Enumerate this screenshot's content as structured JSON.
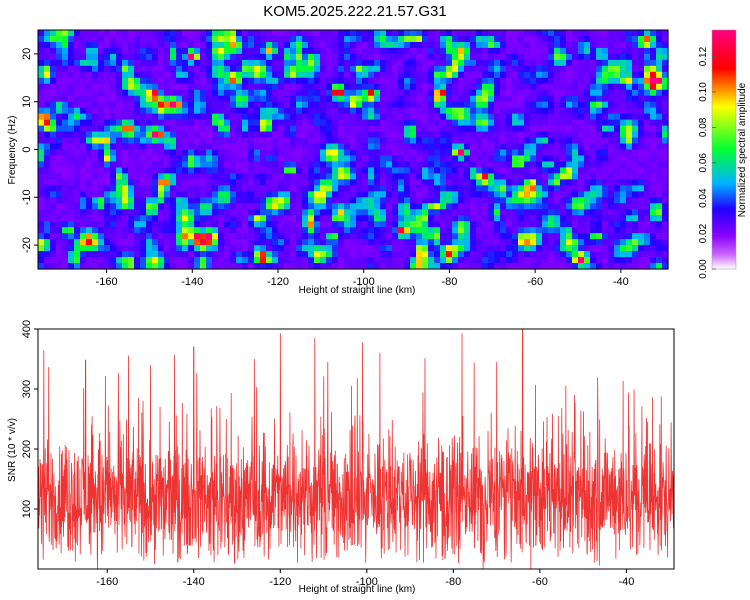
{
  "title": "KOM5.2025.222.21.57.G31",
  "chart_data": [
    {
      "type": "heatmap",
      "xlabel": "Height of straight line (km)",
      "ylabel": "Frequency (Hz)",
      "xlim": [
        -176,
        -29
      ],
      "ylim": [
        -25,
        25
      ],
      "xticks": [
        -160,
        -140,
        -120,
        -100,
        -80,
        -60,
        -40
      ],
      "yticks": [
        -20,
        -10,
        0,
        10,
        20
      ],
      "colorbar": {
        "label": "Normalized spectral amplitude",
        "range": [
          0,
          0.135
        ],
        "ticks": [
          0.0,
          0.02,
          0.04,
          0.06,
          0.08,
          0.1,
          0.12
        ],
        "colormap": [
          "#ffffff",
          "#cc66ff",
          "#8800ff",
          "#2200ff",
          "#00b4ff",
          "#00ff33",
          "#ffff00",
          "#ff0000",
          "#ff0080"
        ]
      },
      "peaks": [
        {
          "x": -140,
          "y": 19.5,
          "value": 0.13
        },
        {
          "x": -72,
          "y": -6,
          "value": 0.11
        },
        {
          "x": -149,
          "y": 11.5,
          "value": 0.11
        },
        {
          "x": -144,
          "y": 9.5,
          "value": 0.1
        },
        {
          "x": -123,
          "y": 5,
          "value": 0.1
        },
        {
          "x": -82,
          "y": 12,
          "value": 0.1
        },
        {
          "x": -148,
          "y": 3,
          "value": 0.09
        },
        {
          "x": -64,
          "y": -2.5,
          "value": 0.09
        },
        {
          "x": -91,
          "y": -17,
          "value": 0.09
        },
        {
          "x": -106,
          "y": 12,
          "value": 0.08
        },
        {
          "x": -130,
          "y": 15,
          "value": 0.08
        },
        {
          "x": -98,
          "y": 11.5,
          "value": 0.08
        }
      ]
    },
    {
      "type": "line",
      "xlabel": "Height of straight line (km)",
      "ylabel": "SNR (10 * v/v)",
      "xlim": [
        -176,
        -29
      ],
      "ylim": [
        0,
        400
      ],
      "xticks": [
        -160,
        -140,
        -120,
        -100,
        -80,
        -60,
        -40
      ],
      "yticks": [
        100,
        200,
        300,
        400
      ],
      "series": [
        {
          "color": "#ee3333",
          "baseline": 120,
          "peaks": [
            {
              "x": -140,
              "y": 370
            },
            {
              "x": -120,
              "y": 393
            },
            {
              "x": -112,
              "y": 385
            },
            {
              "x": -101,
              "y": 378
            },
            {
              "x": -78,
              "y": 393
            },
            {
              "x": -64,
              "y": 400
            },
            {
              "x": -109,
              "y": 345
            },
            {
              "x": -97,
              "y": 360
            },
            {
              "x": -165,
              "y": 348
            },
            {
              "x": -150,
              "y": 340
            },
            {
              "x": -126,
              "y": 350
            },
            {
              "x": -70,
              "y": 345
            }
          ]
        }
      ]
    }
  ]
}
